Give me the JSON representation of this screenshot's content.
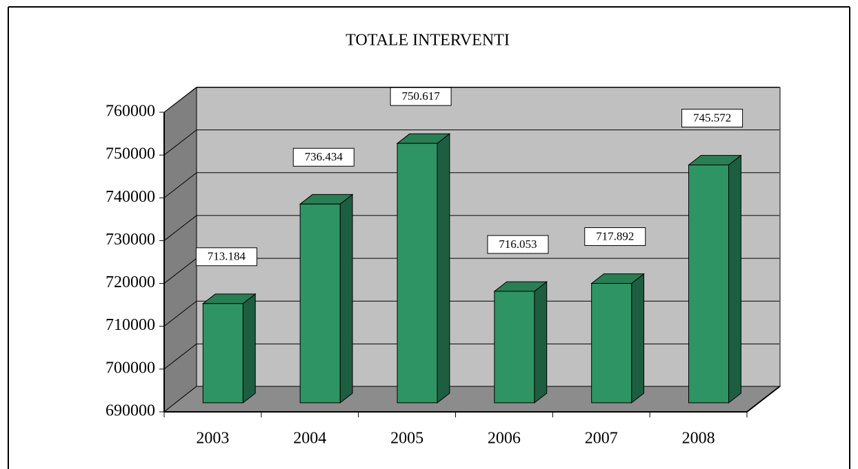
{
  "chart_data": {
    "type": "bar3d",
    "title": "TOTALE INTERVENTI",
    "categories": [
      "2003",
      "2004",
      "2005",
      "2006",
      "2007",
      "2008"
    ],
    "values": [
      713184,
      736434,
      750617,
      716053,
      717892,
      745572
    ],
    "value_labels": [
      "713.184",
      "736.434",
      "750.617",
      "716.053",
      "717.892",
      "745.572"
    ],
    "color": "#2e9464",
    "ylim": [
      690000,
      760000
    ],
    "yticks": [
      690000,
      700000,
      710000,
      720000,
      730000,
      740000,
      750000,
      760000
    ],
    "grid": true
  }
}
